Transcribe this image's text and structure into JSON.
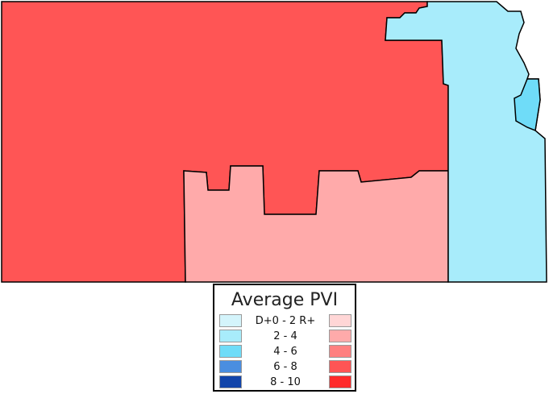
{
  "legend": {
    "title": "Average PVI",
    "rows": [
      {
        "label": "D+0 - 2 R+",
        "dem_color": "#d4f4fb",
        "rep_color": "#ffd6d6"
      },
      {
        "label": "2 - 4",
        "dem_color": "#a8ecfb",
        "rep_color": "#ffaaaa"
      },
      {
        "label": "4 - 6",
        "dem_color": "#6fdcf8",
        "rep_color": "#ff8080"
      },
      {
        "label": "6 - 8",
        "dem_color": "#4a8ee0",
        "rep_color": "#ff5555"
      },
      {
        "label": "8 - 10",
        "dem_color": "#1144aa",
        "rep_color": "#ff2a2a"
      }
    ]
  },
  "districts": [
    {
      "id": "west",
      "color": "#ff5555"
    },
    {
      "id": "south-central",
      "color": "#ffaaaa"
    },
    {
      "id": "east",
      "color": "#a8ecfb"
    },
    {
      "id": "metro",
      "color": "#6fdcf8"
    }
  ]
}
